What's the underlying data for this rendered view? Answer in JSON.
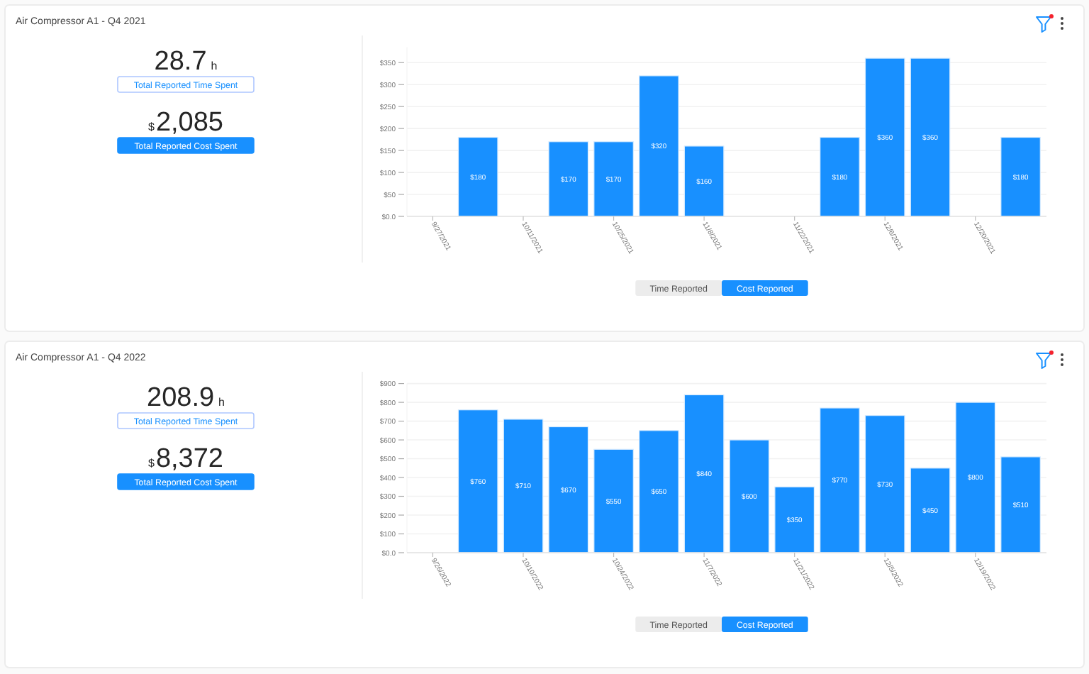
{
  "chart_data": [
    {
      "type": "other",
      "title": "Air Compressor A1 - Q4 2021",
      "annotations": [
        "28.7",
        "h",
        "Total Reported Time Spent",
        "$",
        "2,085",
        "Total Reported Cost Spent"
      ]
    },
    {
      "type": "bar",
      "x": [
        "2021-10-04",
        "2021-10-18",
        "2021-10-25",
        "2021-11-01",
        "2021-11-08",
        "2021-11-29",
        "2021-12-06",
        "2021-12-13",
        "2021-12-27"
      ],
      "values": [
        180,
        170,
        170,
        320,
        160,
        180,
        360,
        360,
        180
      ],
      "value_labels": [
        "$180",
        "$170",
        "$170",
        "$320",
        "$160",
        "$180",
        "$360",
        "$360",
        "$180"
      ],
      "color": "#1890ff",
      "xlim": [
        "2021-09-23",
        "2021-12-31"
      ],
      "xticks": [
        {
          "value": "2021-09-27",
          "label": "9/27/2021"
        },
        {
          "value": "2021-10-11",
          "label": "10/11/2021"
        },
        {
          "value": "2021-10-25",
          "label": "10/25/2021"
        },
        {
          "value": "2021-11-08",
          "label": "11/8/2021"
        },
        {
          "value": "2021-11-22",
          "label": "11/22/2021"
        },
        {
          "value": "2021-12-06",
          "label": "12/6/2021"
        },
        {
          "value": "2021-12-20",
          "label": "12/20/2021"
        }
      ],
      "ylim": [
        0,
        385
      ],
      "yticks": [
        {
          "value": 0,
          "label": "$0.0"
        },
        {
          "value": 50,
          "label": "$50"
        },
        {
          "value": 100,
          "label": "$100"
        },
        {
          "value": 150,
          "label": "$150"
        },
        {
          "value": 200,
          "label": "$200"
        },
        {
          "value": 250,
          "label": "$250"
        },
        {
          "value": 300,
          "label": "$300"
        },
        {
          "value": 350,
          "label": "$350"
        }
      ],
      "grid": "y",
      "annotations": [
        "Time Reported",
        "Cost Reported"
      ]
    },
    {
      "type": "other",
      "title": "Air Compressor A1 - Q4 2022",
      "annotations": [
        "208.9",
        "h",
        "Total Reported Time Spent",
        "$",
        "8,372",
        "Total Reported Cost Spent"
      ]
    },
    {
      "type": "bar",
      "x": [
        "2022-10-03",
        "2022-10-10",
        "2022-10-17",
        "2022-10-24",
        "2022-10-31",
        "2022-11-07",
        "2022-11-14",
        "2022-11-21",
        "2022-11-28",
        "2022-12-05",
        "2022-12-12",
        "2022-12-19",
        "2022-12-26"
      ],
      "values": [
        760,
        710,
        670,
        550,
        650,
        840,
        600,
        350,
        770,
        730,
        450,
        800,
        510
      ],
      "value_labels": [
        "$760",
        "$710",
        "$670",
        "$550",
        "$650",
        "$840",
        "$600",
        "$350",
        "$770",
        "$730",
        "$450",
        "$800",
        "$510"
      ],
      "color": "#1890ff",
      "xlim": [
        "2022-09-22",
        "2022-12-30"
      ],
      "xticks": [
        {
          "value": "2022-09-26",
          "label": "9/26/2022"
        },
        {
          "value": "2022-10-10",
          "label": "10/10/2022"
        },
        {
          "value": "2022-10-24",
          "label": "10/24/2022"
        },
        {
          "value": "2022-11-07",
          "label": "11/7/2022"
        },
        {
          "value": "2022-11-21",
          "label": "11/21/2022"
        },
        {
          "value": "2022-12-05",
          "label": "12/5/2022"
        },
        {
          "value": "2022-12-19",
          "label": "12/19/2022"
        }
      ],
      "ylim": [
        0,
        900
      ],
      "yticks": [
        {
          "value": 0,
          "label": "$0.0"
        },
        {
          "value": 100,
          "label": "$100"
        },
        {
          "value": 200,
          "label": "$200"
        },
        {
          "value": 300,
          "label": "$300"
        },
        {
          "value": 400,
          "label": "$400"
        },
        {
          "value": 500,
          "label": "$500"
        },
        {
          "value": 600,
          "label": "$600"
        },
        {
          "value": 700,
          "label": "$700"
        },
        {
          "value": 800,
          "label": "$800"
        },
        {
          "value": 900,
          "label": "$900"
        }
      ],
      "grid": "y",
      "annotations": [
        "Time Reported",
        "Cost Reported"
      ]
    }
  ]
}
